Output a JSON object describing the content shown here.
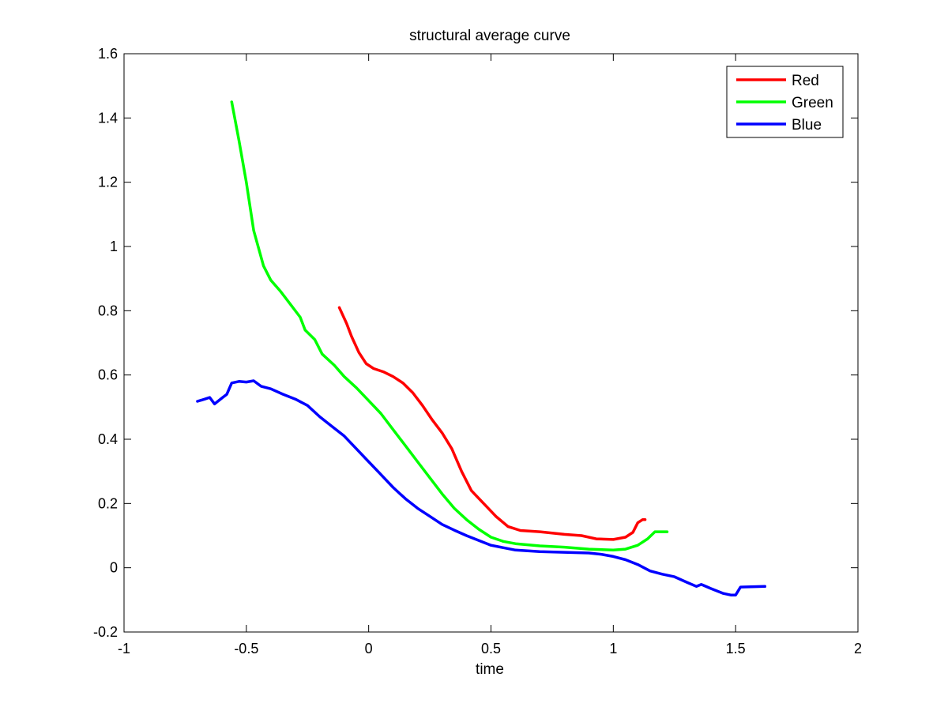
{
  "chart_data": {
    "type": "line",
    "title": "structural average curve",
    "xlabel": "time",
    "ylabel": "",
    "xlim": [
      -1,
      2
    ],
    "ylim": [
      -0.2,
      1.6
    ],
    "x_ticks": [
      -1,
      -0.5,
      0,
      0.5,
      1,
      1.5,
      2
    ],
    "x_tick_labels": [
      "-1",
      "-0.5",
      "0",
      "0.5",
      "1",
      "1.5",
      "2"
    ],
    "y_ticks": [
      -0.2,
      0,
      0.2,
      0.4,
      0.6,
      0.8,
      1,
      1.2,
      1.4,
      1.6
    ],
    "y_tick_labels": [
      "-0.2",
      "0",
      "0.2",
      "0.4",
      "0.6",
      "0.8",
      "1",
      "1.2",
      "1.4",
      "1.6"
    ],
    "grid": false,
    "legend_position": "top-right",
    "series": [
      {
        "name": "Red",
        "color": "#ff0000",
        "points": [
          [
            -0.12,
            0.81
          ],
          [
            -0.09,
            0.76
          ],
          [
            -0.07,
            0.72
          ],
          [
            -0.04,
            0.67
          ],
          [
            -0.01,
            0.635
          ],
          [
            0.02,
            0.62
          ],
          [
            0.06,
            0.61
          ],
          [
            0.1,
            0.595
          ],
          [
            0.14,
            0.575
          ],
          [
            0.18,
            0.545
          ],
          [
            0.22,
            0.505
          ],
          [
            0.26,
            0.46
          ],
          [
            0.3,
            0.42
          ],
          [
            0.34,
            0.37
          ],
          [
            0.38,
            0.3
          ],
          [
            0.42,
            0.24
          ],
          [
            0.47,
            0.2
          ],
          [
            0.52,
            0.16
          ],
          [
            0.57,
            0.128
          ],
          [
            0.62,
            0.116
          ],
          [
            0.7,
            0.112
          ],
          [
            0.8,
            0.104
          ],
          [
            0.87,
            0.1
          ],
          [
            0.93,
            0.09
          ],
          [
            1.0,
            0.088
          ],
          [
            1.05,
            0.095
          ],
          [
            1.08,
            0.11
          ],
          [
            1.1,
            0.14
          ],
          [
            1.12,
            0.15
          ],
          [
            1.13,
            0.15
          ]
        ]
      },
      {
        "name": "Green",
        "color": "#00ff00",
        "points": [
          [
            -0.56,
            1.45
          ],
          [
            -0.53,
            1.33
          ],
          [
            -0.5,
            1.2
          ],
          [
            -0.47,
            1.05
          ],
          [
            -0.43,
            0.94
          ],
          [
            -0.4,
            0.895
          ],
          [
            -0.36,
            0.86
          ],
          [
            -0.32,
            0.82
          ],
          [
            -0.28,
            0.78
          ],
          [
            -0.26,
            0.74
          ],
          [
            -0.22,
            0.71
          ],
          [
            -0.19,
            0.665
          ],
          [
            -0.14,
            0.63
          ],
          [
            -0.1,
            0.595
          ],
          [
            -0.05,
            0.56
          ],
          [
            0.0,
            0.52
          ],
          [
            0.05,
            0.48
          ],
          [
            0.1,
            0.43
          ],
          [
            0.15,
            0.38
          ],
          [
            0.2,
            0.33
          ],
          [
            0.25,
            0.28
          ],
          [
            0.3,
            0.23
          ],
          [
            0.35,
            0.185
          ],
          [
            0.4,
            0.15
          ],
          [
            0.45,
            0.12
          ],
          [
            0.5,
            0.095
          ],
          [
            0.55,
            0.082
          ],
          [
            0.6,
            0.075
          ],
          [
            0.7,
            0.068
          ],
          [
            0.8,
            0.064
          ],
          [
            0.9,
            0.058
          ],
          [
            1.0,
            0.055
          ],
          [
            1.05,
            0.058
          ],
          [
            1.1,
            0.07
          ],
          [
            1.14,
            0.09
          ],
          [
            1.17,
            0.112
          ],
          [
            1.22,
            0.112
          ]
        ]
      },
      {
        "name": "Blue",
        "color": "#0000ff",
        "points": [
          [
            -0.7,
            0.518
          ],
          [
            -0.67,
            0.525
          ],
          [
            -0.65,
            0.53
          ],
          [
            -0.63,
            0.51
          ],
          [
            -0.6,
            0.528
          ],
          [
            -0.58,
            0.54
          ],
          [
            -0.56,
            0.575
          ],
          [
            -0.53,
            0.58
          ],
          [
            -0.5,
            0.578
          ],
          [
            -0.47,
            0.582
          ],
          [
            -0.44,
            0.565
          ],
          [
            -0.4,
            0.557
          ],
          [
            -0.35,
            0.54
          ],
          [
            -0.3,
            0.525
          ],
          [
            -0.25,
            0.505
          ],
          [
            -0.2,
            0.47
          ],
          [
            -0.15,
            0.44
          ],
          [
            -0.1,
            0.41
          ],
          [
            -0.05,
            0.37
          ],
          [
            0.0,
            0.33
          ],
          [
            0.05,
            0.29
          ],
          [
            0.1,
            0.25
          ],
          [
            0.15,
            0.215
          ],
          [
            0.2,
            0.185
          ],
          [
            0.25,
            0.16
          ],
          [
            0.3,
            0.135
          ],
          [
            0.35,
            0.117
          ],
          [
            0.4,
            0.1
          ],
          [
            0.45,
            0.085
          ],
          [
            0.5,
            0.07
          ],
          [
            0.6,
            0.055
          ],
          [
            0.7,
            0.05
          ],
          [
            0.8,
            0.048
          ],
          [
            0.9,
            0.046
          ],
          [
            0.95,
            0.042
          ],
          [
            1.0,
            0.035
          ],
          [
            1.05,
            0.025
          ],
          [
            1.1,
            0.01
          ],
          [
            1.15,
            -0.01
          ],
          [
            1.2,
            -0.02
          ],
          [
            1.25,
            -0.028
          ],
          [
            1.3,
            -0.045
          ],
          [
            1.34,
            -0.058
          ],
          [
            1.36,
            -0.052
          ],
          [
            1.4,
            -0.065
          ],
          [
            1.45,
            -0.08
          ],
          [
            1.48,
            -0.085
          ],
          [
            1.5,
            -0.085
          ],
          [
            1.52,
            -0.06
          ],
          [
            1.62,
            -0.058
          ]
        ]
      }
    ]
  }
}
